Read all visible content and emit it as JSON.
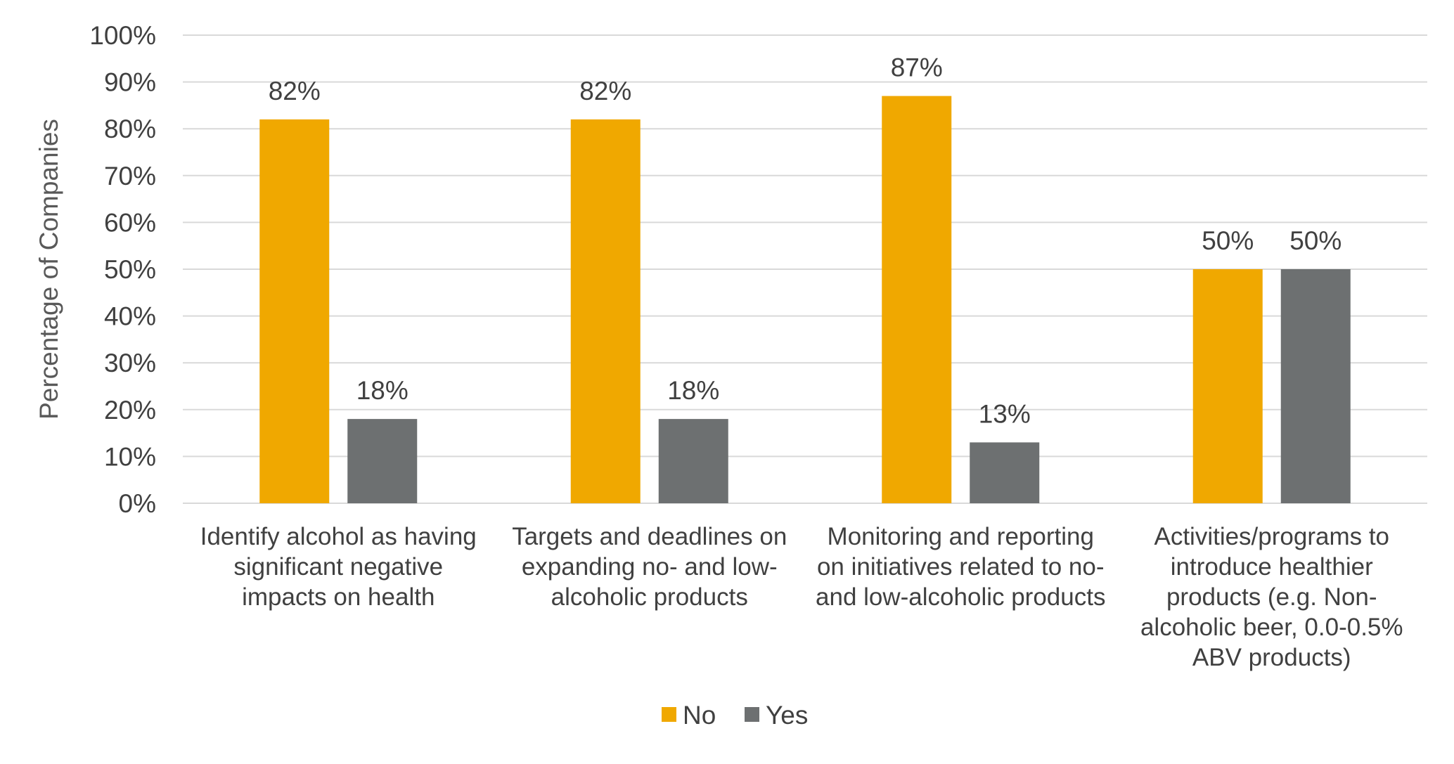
{
  "chart_data": {
    "type": "bar",
    "title": "",
    "xlabel": "",
    "ylabel": "Percentage of Companies",
    "ylim": [
      0,
      100
    ],
    "y_ticks": [
      {
        "value": 0,
        "label": "0%"
      },
      {
        "value": 10,
        "label": "10%"
      },
      {
        "value": 20,
        "label": "20%"
      },
      {
        "value": 30,
        "label": "30%"
      },
      {
        "value": 40,
        "label": "40%"
      },
      {
        "value": 50,
        "label": "50%"
      },
      {
        "value": 60,
        "label": "60%"
      },
      {
        "value": 70,
        "label": "70%"
      },
      {
        "value": 80,
        "label": "80%"
      },
      {
        "value": 90,
        "label": "90%"
      },
      {
        "value": 100,
        "label": "100%"
      }
    ],
    "grid": true,
    "legend_position": "bottom",
    "categories": [
      [
        "Identify alcohol as having",
        "significant negative",
        "impacts on health"
      ],
      [
        "Targets and deadlines on",
        "expanding no- and low-",
        "alcoholic products"
      ],
      [
        "Monitoring and reporting",
        "on initiatives related to no-",
        "and low-alcoholic products"
      ],
      [
        "Activities/programs to",
        "introduce healthier",
        "products (e.g. Non-",
        "alcoholic beer, 0.0-0.5%",
        "ABV products)"
      ]
    ],
    "series": [
      {
        "name": "No",
        "color": "#f0a800",
        "values": [
          82,
          82,
          87,
          50
        ],
        "labels": [
          "82%",
          "82%",
          "87%",
          "50%"
        ]
      },
      {
        "name": "Yes",
        "color": "#6d7071",
        "values": [
          18,
          18,
          13,
          50
        ],
        "labels": [
          "18%",
          "18%",
          "13%",
          "50%"
        ]
      }
    ]
  }
}
